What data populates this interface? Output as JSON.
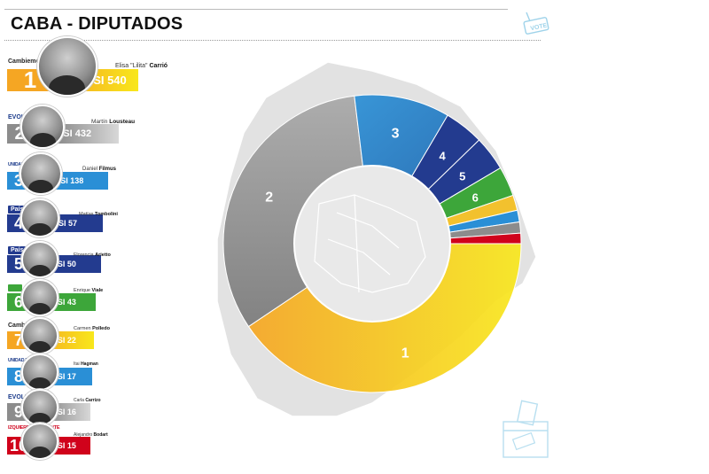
{
  "title": "CABA - DIPUTADOS",
  "colors": {
    "orange": "#f5a623",
    "yellow": "#f8e71c",
    "gray": "#8c8c8c",
    "blue": "#2a8fd6",
    "darkblue": "#233b8f",
    "green": "#3da63a",
    "red": "#d0021b"
  },
  "candidates": [
    {
      "rank": "1",
      "party": "Cambiemos",
      "first_name": "Elisa \"Lilita\"",
      "last_name": "Carrió",
      "votes_label": "SI 540",
      "color": "#f5a623"
    },
    {
      "rank": "2",
      "party": "EVOLUCIÓN",
      "first_name": "Martín",
      "last_name": "Lousteau",
      "votes_label": "SI 432",
      "color": "#8c8c8c"
    },
    {
      "rank": "3",
      "party": "UNIDAD PORTEÑA",
      "first_name": "Daniel",
      "last_name": "Filmus",
      "votes_label": "SI 138",
      "color": "#2a8fd6"
    },
    {
      "rank": "4",
      "party": "País",
      "first_name": "Matías",
      "last_name": "Tombolini",
      "votes_label": "SI 57",
      "color": "#233b8f"
    },
    {
      "rank": "5",
      "party": "País",
      "first_name": "Florencia",
      "last_name": "Arietto",
      "votes_label": "SI 50",
      "color": "#233b8f"
    },
    {
      "rank": "6",
      "party": "",
      "first_name": "Enrique",
      "last_name": "Viale",
      "votes_label": "SI 43",
      "color": "#3da63a"
    },
    {
      "rank": "7",
      "party": "Cambiemos",
      "first_name": "Carmen",
      "last_name": "Polledo",
      "votes_label": "SI 22",
      "color": "#f5a623"
    },
    {
      "rank": "8",
      "party": "UNIDAD PORTEÑA",
      "first_name": "Itai",
      "last_name": "Hagman",
      "votes_label": "SI 17",
      "color": "#2a8fd6"
    },
    {
      "rank": "9",
      "party": "EVOLUCIÓN",
      "first_name": "Carla",
      "last_name": "Carrizo",
      "votes_label": "SI 16",
      "color": "#8c8c8c"
    },
    {
      "rank": "10",
      "party": "IZQUIERDA AL FRENTE",
      "first_name": "Alejandro",
      "last_name": "Bodart",
      "votes_label": "SI 15",
      "color": "#d0021b"
    }
  ],
  "chart_data": {
    "type": "pie",
    "title": "CABA - DIPUTADOS",
    "donut": true,
    "segments": [
      {
        "label": "1",
        "value": 540,
        "color": "#f5a623"
      },
      {
        "label": "2",
        "value": 432,
        "color": "#8c8c8c"
      },
      {
        "label": "3",
        "value": 138,
        "color": "#2a8fd6"
      },
      {
        "label": "4",
        "value": 57,
        "color": "#233b8f"
      },
      {
        "label": "5",
        "value": 50,
        "color": "#233b8f"
      },
      {
        "label": "6",
        "value": 43,
        "color": "#3da63a"
      },
      {
        "label": "",
        "value": 22,
        "color": "#f5a623"
      },
      {
        "label": "",
        "value": 17,
        "color": "#2a8fd6"
      },
      {
        "label": "",
        "value": 16,
        "color": "#8c8c8c"
      },
      {
        "label": "",
        "value": 15,
        "color": "#d0021b"
      }
    ]
  }
}
